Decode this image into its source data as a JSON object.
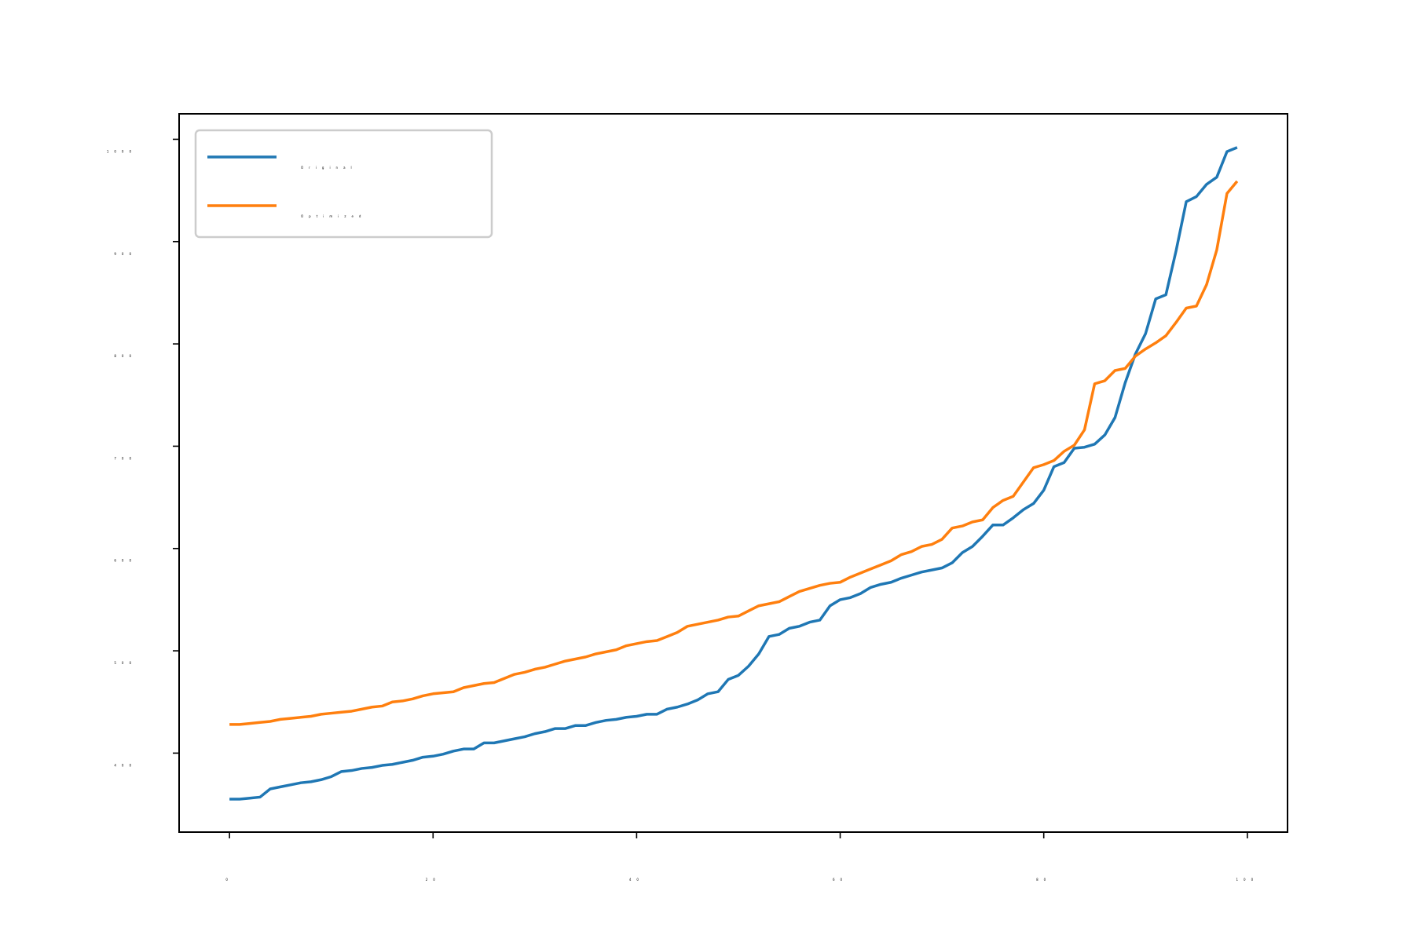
{
  "chart_data": {
    "type": "line",
    "x": [
      0,
      1,
      2,
      3,
      4,
      5,
      6,
      7,
      8,
      9,
      10,
      11,
      12,
      13,
      14,
      15,
      16,
      17,
      18,
      19,
      20,
      21,
      22,
      23,
      24,
      25,
      26,
      27,
      28,
      29,
      30,
      31,
      32,
      33,
      34,
      35,
      36,
      37,
      38,
      39,
      40,
      41,
      42,
      43,
      44,
      45,
      46,
      47,
      48,
      49,
      50,
      51,
      52,
      53,
      54,
      55,
      56,
      57,
      58,
      59,
      60,
      61,
      62,
      63,
      64,
      65,
      66,
      67,
      68,
      69,
      70,
      71,
      72,
      73,
      74,
      75,
      76,
      77,
      78,
      79,
      80,
      81,
      82,
      83,
      84,
      85,
      86,
      87,
      88,
      89,
      90,
      91,
      92,
      93,
      94,
      95,
      96,
      97,
      98,
      99
    ],
    "series": [
      {
        "name": "Original",
        "color": "#1f77b4",
        "values": [
          355,
          355,
          356,
          357,
          365,
          367,
          369,
          371,
          372,
          374,
          377,
          382,
          383,
          385,
          386,
          388,
          389,
          391,
          393,
          396,
          397,
          399,
          402,
          404,
          404,
          410,
          410,
          412,
          414,
          416,
          419,
          421,
          424,
          424,
          427,
          427,
          430,
          432,
          433,
          435,
          436,
          438,
          438,
          443,
          445,
          448,
          452,
          458,
          460,
          472,
          476,
          485,
          497,
          514,
          516,
          522,
          524,
          528,
          530,
          544,
          550,
          552,
          556,
          562,
          565,
          567,
          571,
          574,
          577,
          579,
          581,
          586,
          596,
          602,
          612,
          623,
          623,
          630,
          638,
          644,
          657,
          680,
          684,
          698,
          699,
          702,
          711,
          728,
          762,
          790,
          810,
          844,
          848,
          891,
          939,
          944,
          956,
          963,
          988,
          992
        ]
      },
      {
        "name": "Optimized",
        "color": "#ff7f0e",
        "values": [
          428,
          428,
          429,
          430,
          431,
          433,
          434,
          435,
          436,
          438,
          439,
          440,
          441,
          443,
          445,
          446,
          450,
          451,
          453,
          456,
          458,
          459,
          460,
          464,
          466,
          468,
          469,
          473,
          477,
          479,
          482,
          484,
          487,
          490,
          492,
          494,
          497,
          499,
          501,
          505,
          507,
          509,
          510,
          514,
          518,
          524,
          526,
          528,
          530,
          533,
          534,
          539,
          544,
          546,
          548,
          553,
          558,
          561,
          564,
          566,
          567,
          572,
          576,
          580,
          584,
          588,
          594,
          597,
          602,
          604,
          609,
          620,
          622,
          626,
          628,
          640,
          647,
          651,
          665,
          679,
          682,
          686,
          695,
          701,
          716,
          761,
          764,
          774,
          776,
          788,
          795,
          801,
          808,
          821,
          835,
          837,
          858,
          892,
          947,
          959
        ]
      }
    ],
    "xlim": [
      -4.95,
      103.95
    ],
    "xticks": [
      0,
      20,
      40,
      60,
      80,
      100
    ],
    "ylim": [
      322.8,
      1024.9
    ],
    "yticks": [
      400,
      500,
      600,
      700,
      800,
      900,
      1000
    ],
    "grid": false,
    "legend": "upper left"
  }
}
